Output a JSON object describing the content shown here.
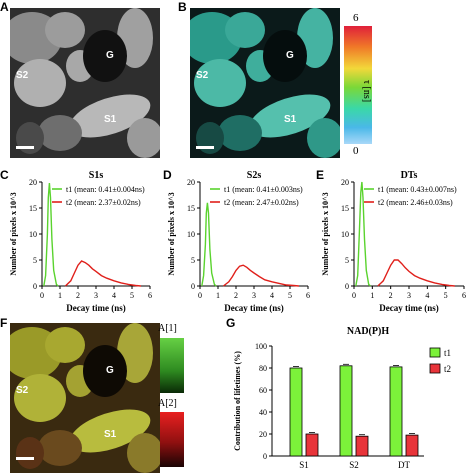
{
  "panels": {
    "A": {
      "label": "A",
      "regions": [
        "G",
        "S2",
        "S1"
      ]
    },
    "B": {
      "label": "B",
      "regions": [
        "G",
        "S2",
        "S1"
      ],
      "colorbar": {
        "max": "6",
        "min": "0",
        "unit": "τ [ns]"
      }
    },
    "F": {
      "label": "F",
      "regions": [
        "G",
        "S2",
        "S1"
      ],
      "legend_a1": "A[1]",
      "legend_a2": "A[2]"
    }
  },
  "colors": {
    "t1": "#5ad32e",
    "t2": "#e0201b",
    "bar_t1": "#7cf23a",
    "bar_t2": "#e8343a"
  },
  "chart_data": [
    {
      "panel": "C",
      "type": "line",
      "title": "S1s",
      "xlabel": "Decay time (ns)",
      "ylabel": "Number of pixels x 10^3",
      "xlim": [
        0,
        6
      ],
      "ylim": [
        0,
        20
      ],
      "xticks": [
        "0",
        "1",
        "2",
        "3",
        "4",
        "5",
        "6"
      ],
      "yticks": [
        "0",
        "5",
        "10",
        "15",
        "20"
      ],
      "legend": [
        "t1 (mean: 0.41±0.004ns)",
        "t2 (mean: 2.37±0.02ns)"
      ],
      "series": [
        {
          "name": "t1",
          "x": [
            0.1,
            0.2,
            0.3,
            0.35,
            0.41,
            0.47,
            0.55,
            0.65,
            0.8,
            0.9
          ],
          "y": [
            0,
            2,
            10,
            17,
            19.8,
            17,
            9,
            3,
            0.3,
            0
          ]
        },
        {
          "name": "t2",
          "x": [
            1.3,
            1.6,
            1.8,
            2.0,
            2.2,
            2.4,
            2.6,
            2.8,
            3.0,
            3.3,
            3.6,
            4.0,
            4.4,
            4.8,
            5.2,
            5.5
          ],
          "y": [
            0,
            1,
            2.5,
            4,
            4.8,
            4.5,
            4,
            3.3,
            2.8,
            2,
            1.5,
            1,
            0.6,
            0.3,
            0.1,
            0
          ]
        }
      ]
    },
    {
      "panel": "D",
      "type": "line",
      "title": "S2s",
      "xlabel": "Decay time (ns)",
      "ylabel": "Number of pixels x 10^3",
      "xlim": [
        0,
        6
      ],
      "ylim": [
        0,
        20
      ],
      "xticks": [
        "0",
        "1",
        "2",
        "3",
        "4",
        "5",
        "6"
      ],
      "yticks": [
        "0",
        "5",
        "10",
        "15",
        "20"
      ],
      "legend": [
        "t1 (mean: 0.41±0.003ns)",
        "t2 (mean: 2.47±0.02ns)"
      ],
      "series": [
        {
          "name": "t1",
          "x": [
            0.1,
            0.2,
            0.3,
            0.35,
            0.41,
            0.47,
            0.55,
            0.65,
            0.8,
            0.9
          ],
          "y": [
            0,
            2,
            8,
            14,
            16,
            14,
            7,
            2.5,
            0.3,
            0
          ]
        },
        {
          "name": "t2",
          "x": [
            1.3,
            1.6,
            1.8,
            2.0,
            2.2,
            2.4,
            2.6,
            2.8,
            3.0,
            3.3,
            3.6,
            4.0,
            4.4,
            4.8,
            5.2,
            5.5
          ],
          "y": [
            0,
            0.8,
            1.8,
            3,
            3.8,
            4,
            3.6,
            3,
            2.5,
            1.8,
            1.2,
            0.8,
            0.5,
            0.2,
            0.1,
            0
          ]
        }
      ]
    },
    {
      "panel": "E",
      "type": "line",
      "title": "DTs",
      "xlabel": "Decay time (ns)",
      "ylabel": "Number of pixels x 10^3",
      "xlim": [
        0,
        6
      ],
      "ylim": [
        0,
        20
      ],
      "xticks": [
        "0",
        "1",
        "2",
        "3",
        "4",
        "5",
        "6"
      ],
      "yticks": [
        "0",
        "5",
        "10",
        "15",
        "20"
      ],
      "legend": [
        "t1 (mean: 0.43±0.007ns)",
        "t2 (mean: 2.46±0.03ns)"
      ],
      "series": [
        {
          "name": "t1",
          "x": [
            0.1,
            0.2,
            0.3,
            0.37,
            0.43,
            0.49,
            0.57,
            0.67,
            0.8,
            0.9
          ],
          "y": [
            0,
            2,
            11,
            18,
            20,
            17,
            9,
            3,
            0.3,
            0
          ]
        },
        {
          "name": "t2",
          "x": [
            1.3,
            1.6,
            1.8,
            2.0,
            2.2,
            2.4,
            2.6,
            2.8,
            3.0,
            3.3,
            3.6,
            4.0,
            4.4,
            4.8,
            5.2,
            5.5
          ],
          "y": [
            0,
            1,
            2.5,
            4,
            5,
            5,
            4.3,
            3.5,
            2.8,
            2,
            1.5,
            1,
            0.6,
            0.3,
            0.1,
            0
          ]
        }
      ]
    },
    {
      "panel": "G",
      "type": "bar",
      "title": "NAD(P)H",
      "ylabel": "Contribution of lifetimes (%)",
      "categories": [
        "S1",
        "S2",
        "DT"
      ],
      "ylim": [
        0,
        100
      ],
      "yticks": [
        "0",
        "20",
        "40",
        "60",
        "80",
        "100"
      ],
      "legend": [
        "t1",
        "t2"
      ],
      "series": [
        {
          "name": "t1",
          "values": [
            80,
            82,
            81
          ]
        },
        {
          "name": "t2",
          "values": [
            20,
            18,
            19
          ]
        }
      ]
    }
  ]
}
